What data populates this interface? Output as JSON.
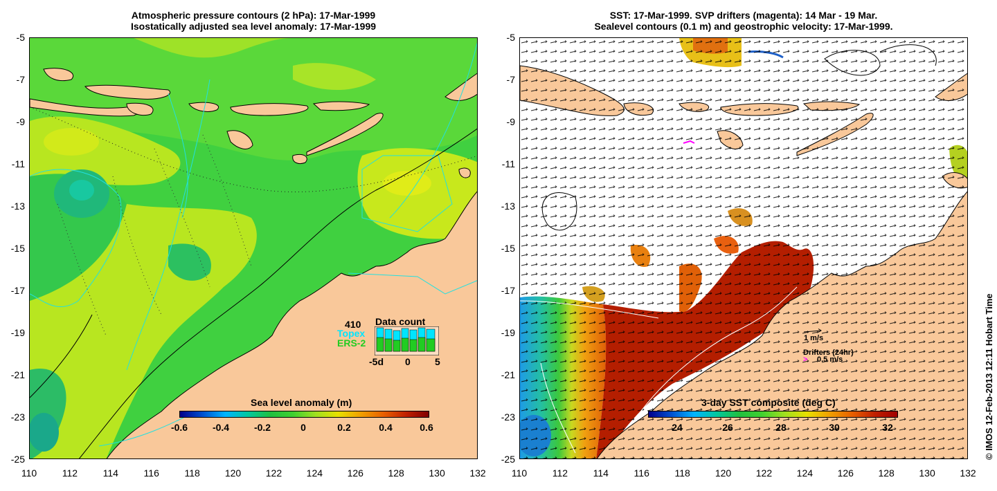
{
  "left_panel": {
    "title_line1": "Atmospheric pressure contours (2 hPa): 17-Mar-1999",
    "title_line2": "Isostatically adjusted sea level anomaly: 17-Mar-1999",
    "colorbar_title": "Sea level anomaly (m)",
    "colorbar_ticks": [
      "-0.6",
      "-0.4",
      "-0.2",
      "0",
      "0.2",
      "0.4",
      "0.6"
    ],
    "data_count": {
      "title": "Data count",
      "total": "410",
      "topex_label": "Topex",
      "ers2_label": "ERS-2",
      "axis_ticks": [
        "-5d",
        "0",
        "5"
      ],
      "topex_color": "#00e5ff",
      "ers2_color": "#22cc22"
    }
  },
  "right_panel": {
    "title_line1": "SST: 17-Mar-1999. SVP drifters (magenta): 14 Mar - 19 Mar.",
    "title_line2": "Sealevel contours (0.1 m) and geostrophic velocity: 17-Mar-1999.",
    "colorbar_title": "3-day SST composite (deg C)",
    "colorbar_ticks": [
      "24",
      "26",
      "28",
      "30",
      "32"
    ],
    "velocity_scale_label": "1 m/s",
    "drifters_label": "Drifters (24hr)",
    "drifters_speed_label": "0.5 m/s",
    "drifter_color": "#ff00ff"
  },
  "axes": {
    "y_ticks": [
      "-5",
      "-7",
      "-9",
      "-11",
      "-13",
      "-15",
      "-17",
      "-19",
      "-21",
      "-23",
      "-25"
    ],
    "x_ticks": [
      "110",
      "112",
      "114",
      "116",
      "118",
      "120",
      "122",
      "124",
      "126",
      "128",
      "130",
      "132"
    ]
  },
  "credit": "© IMOS 12-Feb-2013 12:11 Hobart Time",
  "colors": {
    "land": "#f9c89a",
    "sea_anomaly_green": "#3cd23c",
    "sea_anomaly_lime": "#b4e61e",
    "sst_hot": "#b41e00",
    "sst_cool": "#1e9be6"
  }
}
